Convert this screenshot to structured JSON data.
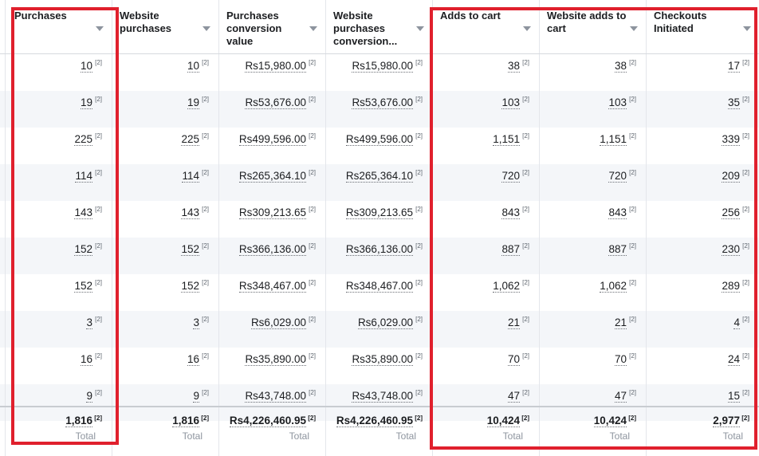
{
  "columns": [
    {
      "id": "purchases",
      "header": "Purchases",
      "values": [
        "10",
        "19",
        "225",
        "114",
        "143",
        "152",
        "152",
        "3",
        "16",
        "9"
      ],
      "total": "1,816"
    },
    {
      "id": "website_purchases",
      "header": "Website purchases",
      "values": [
        "10",
        "19",
        "225",
        "114",
        "143",
        "152",
        "152",
        "3",
        "16",
        "9"
      ],
      "total": "1,816"
    },
    {
      "id": "purchases_conv_value",
      "header": "Purchases conversion value",
      "values": [
        "Rs15,980.00",
        "Rs53,676.00",
        "Rs499,596.00",
        "Rs265,364.10",
        "Rs309,213.65",
        "Rs366,136.00",
        "Rs348,467.00",
        "Rs6,029.00",
        "Rs35,890.00",
        "Rs43,748.00"
      ],
      "total": "Rs4,226,460.95"
    },
    {
      "id": "website_purchases_conv",
      "header": "Website purchases conversion...",
      "values": [
        "Rs15,980.00",
        "Rs53,676.00",
        "Rs499,596.00",
        "Rs265,364.10",
        "Rs309,213.65",
        "Rs366,136.00",
        "Rs348,467.00",
        "Rs6,029.00",
        "Rs35,890.00",
        "Rs43,748.00"
      ],
      "total": "Rs4,226,460.95"
    },
    {
      "id": "adds_to_cart",
      "header": "Adds to cart",
      "values": [
        "38",
        "103",
        "1,151",
        "720",
        "843",
        "887",
        "1,062",
        "21",
        "70",
        "47"
      ],
      "total": "10,424"
    },
    {
      "id": "website_adds_to_cart",
      "header": "Website adds to cart",
      "values": [
        "38",
        "103",
        "1,151",
        "720",
        "843",
        "887",
        "1,062",
        "21",
        "70",
        "47"
      ],
      "total": "10,424"
    },
    {
      "id": "checkouts_initiated",
      "header": "Checkouts Initiated",
      "values": [
        "17",
        "35",
        "339",
        "209",
        "256",
        "230",
        "289",
        "4",
        "24",
        "15"
      ],
      "total": "2,977"
    }
  ],
  "footnote": "[2]",
  "total_label": "Total",
  "colors": {
    "highlight": "#e0202d",
    "row_alt": "#f4f6f9",
    "border": "#e4e6eb"
  }
}
